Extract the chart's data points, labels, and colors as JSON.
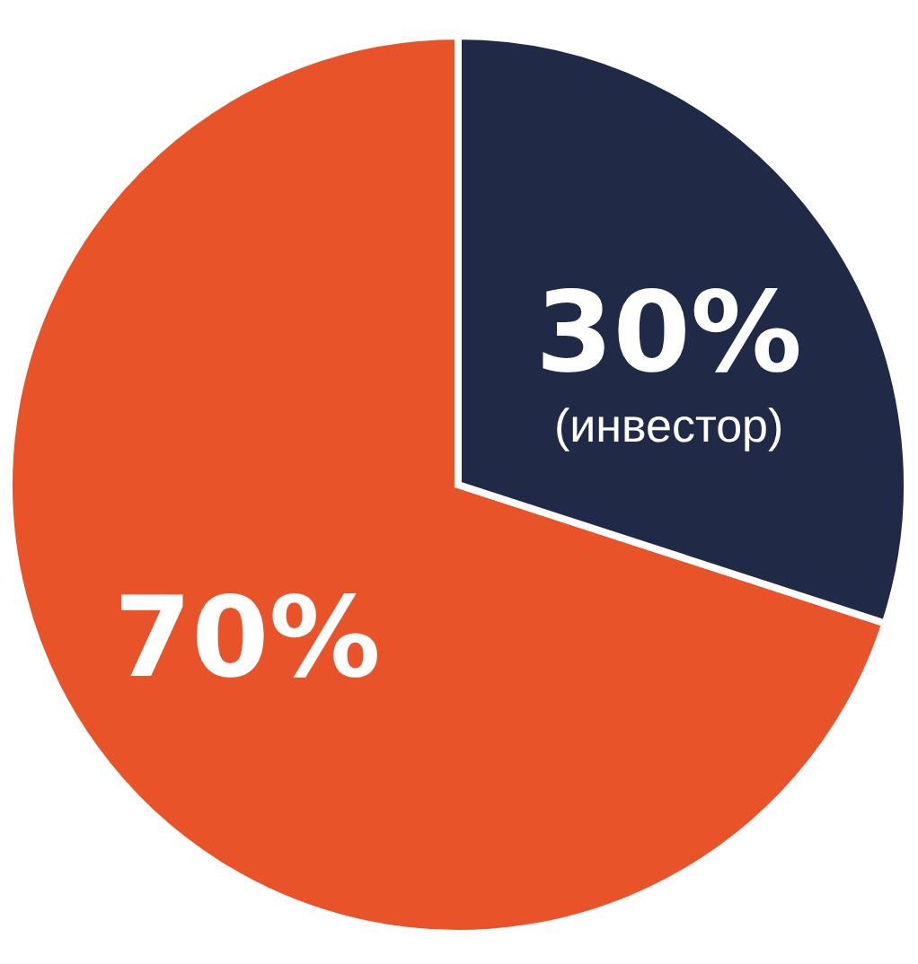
{
  "chart_data": {
    "type": "pie",
    "categories": [
      null,
      "(инвестор)"
    ],
    "values": [
      70,
      30
    ],
    "colors": [
      "#e8532a",
      "#202945"
    ],
    "value_labels": [
      "70%",
      "30%"
    ],
    "legend": false
  }
}
